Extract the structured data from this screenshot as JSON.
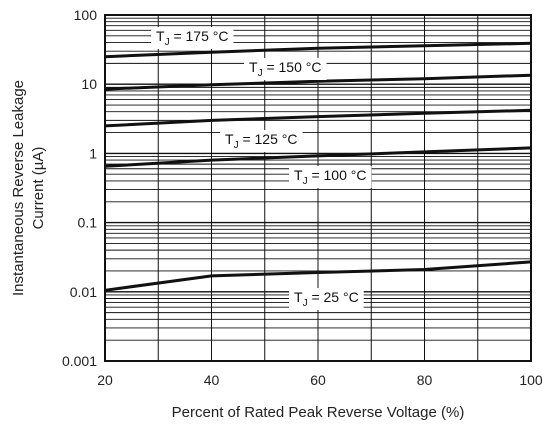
{
  "chart_data": {
    "type": "line",
    "title": "",
    "xlabel": "Percent of Rated Peak Reverse Voltage (%)",
    "ylabel_line1": "Instantaneous Reverse Leakage",
    "ylabel_line2": "Current (µA)",
    "x_scale": "linear",
    "y_scale": "log",
    "xlim": [
      20,
      100
    ],
    "ylim": [
      0.001,
      100
    ],
    "grid": true,
    "x_ticks": [
      "20",
      "40",
      "60",
      "80",
      "100"
    ],
    "y_ticks": [
      "100",
      "10",
      "1",
      "0.1",
      "0.01",
      "0.001"
    ],
    "series": [
      {
        "label": "175 °C",
        "x": [
          20,
          40,
          60,
          80,
          100
        ],
        "y": [
          25,
          29,
          33,
          36,
          39
        ]
      },
      {
        "label": "150 °C",
        "x": [
          20,
          40,
          60,
          80,
          100
        ],
        "y": [
          8.5,
          9.8,
          11,
          12,
          13.5
        ]
      },
      {
        "label": "125 °C",
        "x": [
          20,
          40,
          60,
          80,
          100
        ],
        "y": [
          2.5,
          3.0,
          3.4,
          3.8,
          4.2
        ]
      },
      {
        "label": "100 °C",
        "x": [
          20,
          40,
          60,
          80,
          100
        ],
        "y": [
          0.65,
          0.8,
          0.92,
          1.05,
          1.2
        ]
      },
      {
        "label": "25 °C",
        "x": [
          20,
          40,
          60,
          80,
          100
        ],
        "y": [
          0.0105,
          0.017,
          0.019,
          0.021,
          0.027
        ]
      }
    ],
    "label_prefix": "T",
    "label_subscript": "J",
    "label_separator": " = "
  }
}
